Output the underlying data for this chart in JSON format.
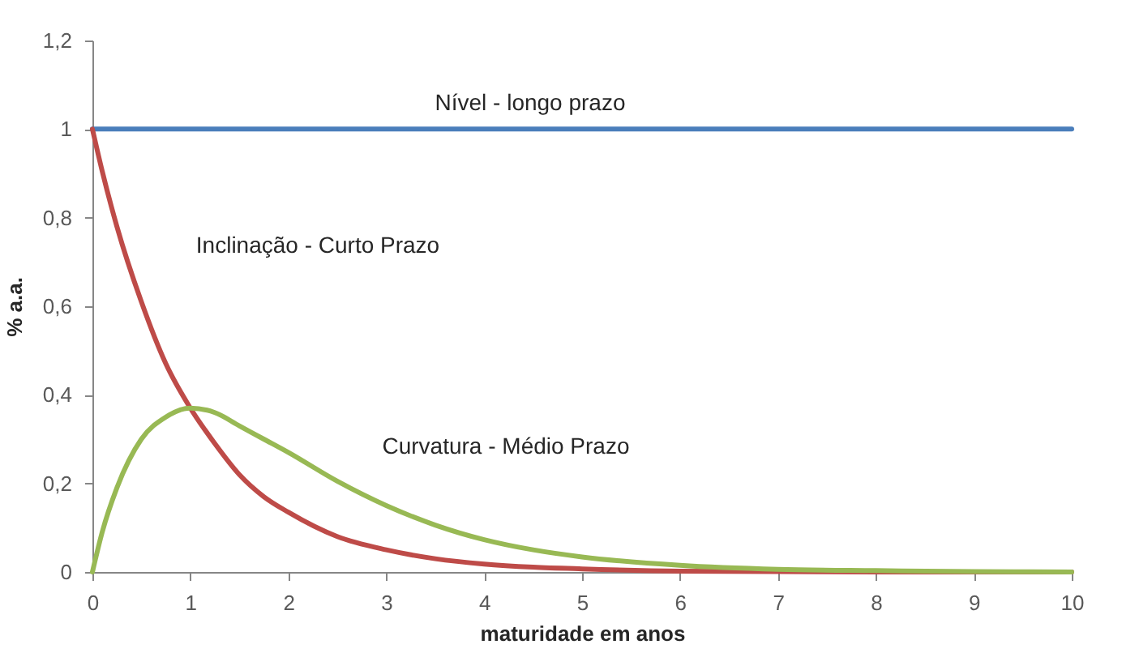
{
  "chart_data": {
    "type": "line",
    "xlabel": "maturidade em anos",
    "ylabel": "% a.a.",
    "x": [
      0,
      0.1,
      0.25,
      0.5,
      0.75,
      1,
      1.25,
      1.5,
      1.75,
      2,
      2.5,
      3,
      3.5,
      4,
      4.5,
      5,
      6,
      7,
      8,
      9,
      10
    ],
    "series": [
      {
        "name": "Nível - longo prazo",
        "color": "#4a7ebb",
        "x": [
          0,
          10
        ],
        "values": [
          1,
          1
        ]
      },
      {
        "name": "Inclinação - Curto Prazo",
        "color": "#be4b48",
        "values": [
          1,
          0.905,
          0.78,
          0.61,
          0.47,
          0.37,
          0.29,
          0.22,
          0.17,
          0.135,
          0.08,
          0.05,
          0.03,
          0.018,
          0.011,
          0.007,
          0.002,
          0.001,
          0,
          0,
          0
        ]
      },
      {
        "name": "Curvatura - Médio Prazo",
        "color": "#98b954",
        "values": [
          0,
          0.09,
          0.19,
          0.3,
          0.35,
          0.37,
          0.36,
          0.33,
          0.3,
          0.27,
          0.205,
          0.15,
          0.106,
          0.073,
          0.05,
          0.034,
          0.015,
          0.006,
          0.003,
          0.001,
          0
        ]
      }
    ],
    "xlim": [
      0,
      10
    ],
    "xticks": [
      0,
      1,
      2,
      3,
      4,
      5,
      6,
      7,
      8,
      9,
      10
    ],
    "ylim": [
      0,
      1.2
    ],
    "yticks": [
      0,
      {
        "value": 0.2,
        "label": "0,2"
      },
      {
        "value": 0.4,
        "label": "0,4"
      },
      {
        "value": 0.6,
        "label": "0,6"
      },
      {
        "value": 0.8,
        "label": "0,8"
      },
      1,
      {
        "value": 1.2,
        "label": "1,2"
      }
    ],
    "line_style": "solid",
    "grid": false,
    "legend": false
  }
}
